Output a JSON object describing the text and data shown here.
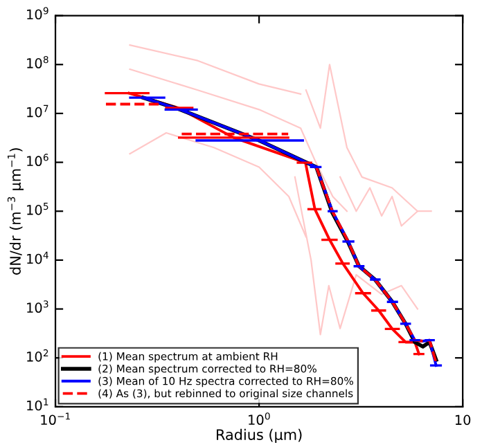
{
  "chart_data": {
    "type": "line",
    "xlabel": "Radius (μm)",
    "ylabel": "dN/dr (m$^{−3}$ μm$^{−1}$)",
    "log": "xy",
    "grid": false,
    "legend": "bottom left",
    "xlim": [
      0.1,
      10
    ],
    "ylim": [
      10,
      1000000000
    ],
    "xticks": [
      {
        "value": 0.1,
        "label": "10$^{−1}$"
      },
      {
        "value": 1,
        "label": "10$^{0}$"
      },
      10
    ],
    "yticks": [
      {
        "value": 10,
        "label": "10$^{1}$"
      },
      {
        "value": 100,
        "label": "10$^{2}$"
      },
      {
        "value": 1000,
        "label": "10$^{3}$"
      },
      {
        "value": 10000,
        "label": "10$^{4}$"
      },
      {
        "value": 100000,
        "label": "10$^{5}$"
      },
      {
        "value": 1000000,
        "label": "10$^{6}$"
      },
      {
        "value": 10000000,
        "label": "10$^{7}$"
      },
      {
        "value": 100000000,
        "label": "10$^{8}$"
      },
      {
        "value": 1000000000,
        "label": "10$^{9}$"
      }
    ],
    "series": [
      {
        "color": "#ffc8c8",
        "x": [
          0.232,
          0.5,
          1.0,
          1.6
        ],
        "values": [
          250000000,
          120000000,
          40000000,
          25000000
        ]
      },
      {
        "color": "#ffc8c8",
        "x": [
          0.232,
          0.5,
          1.0,
          1.6,
          1.9,
          2.3,
          2.7
        ],
        "values": [
          80000000,
          30000000,
          12000000,
          5000000,
          1000000,
          200000,
          100000
        ]
      },
      {
        "color": "#ffc8c8",
        "x": [
          0.232,
          0.35,
          0.6,
          1.0,
          1.4,
          1.7
        ],
        "values": [
          1500000,
          4000000,
          2000000,
          800000,
          200000,
          30000
        ]
      },
      {
        "color": "#ffc8c8",
        "x": [
          1.7,
          2.0,
          2.22,
          2.7,
          3.2,
          4.5,
          6.0
        ],
        "values": [
          30000000,
          5000000,
          100000000,
          2000000,
          500000,
          300000,
          100000
        ]
      },
      {
        "color": "#ffc8c8",
        "x": [
          1.5,
          1.8,
          2.0,
          2.2,
          2.5,
          3.0,
          4.0,
          5.0,
          6.0
        ],
        "values": [
          500000,
          10000,
          300,
          3000,
          400,
          5000,
          2000,
          3000,
          1000
        ]
      },
      {
        "color": "#ffc8c8",
        "x": [
          2.5,
          3.0,
          3.5,
          4.0,
          4.5,
          5.0,
          6.0,
          7.0
        ],
        "values": [
          500000,
          100000,
          300000,
          80000,
          200000,
          50000,
          100000,
          100000
        ]
      },
      {
        "name": "(1) Mean spectrum at ambient RH",
        "color": "#ff0000",
        "line_style": "solid",
        "x": [
          0.23,
          0.4,
          0.75,
          1.69,
          1.88,
          2.22,
          2.58,
          3.24,
          3.87,
          4.51,
          5.24,
          5.82,
          6.1
        ],
        "values": [
          26000000,
          13000000,
          3200000,
          980000,
          110000,
          26000,
          8500,
          2100,
          930,
          390,
          210,
          210,
          120
        ],
        "xerrors": [
          [
            0.177,
            0.286
          ],
          [
            0.35,
            0.47
          ],
          [
            0.405,
            1.39
          ],
          [
            1.55,
            1.8
          ],
          [
            1.75,
            2.0
          ],
          [
            2.05,
            2.4
          ],
          [
            2.4,
            2.75
          ],
          [
            3.0,
            3.5
          ],
          [
            3.6,
            4.15
          ],
          [
            4.2,
            4.85
          ],
          [
            4.9,
            5.6
          ],
          null,
          [
            5.8,
            6.4
          ]
        ]
      },
      {
        "name": "(2) Mean spectrum corrected to RH=80%",
        "color": "#000000",
        "line_style": "solid",
        "x": [
          0.27,
          0.41,
          1.0,
          1.91,
          2.29,
          2.74,
          3.09,
          3.71,
          4.51,
          5.24,
          5.82,
          6.37,
          6.87,
          7.4
        ],
        "values": [
          21000000,
          12000000,
          2800000,
          800000,
          93000,
          23000,
          7600,
          4000,
          1400,
          500,
          210,
          170,
          210,
          91
        ]
      },
      {
        "name": "(3) Mean of 10 Hz spectra corrected to RH=80%",
        "color": "#0000ff",
        "line_style": "solid",
        "x": [
          0.27,
          0.41,
          1.0,
          1.91,
          2.29,
          2.74,
          3.09,
          3.71,
          4.51,
          5.24,
          5.82,
          6.37,
          6.87,
          7.4
        ],
        "values": [
          21000000,
          12000000,
          2800000,
          800000,
          100000,
          24000,
          7500,
          4000,
          1400,
          500,
          230,
          220,
          230,
          70
        ],
        "xerrors": [
          [
            0.233,
            0.342
          ],
          [
            0.348,
            0.494
          ],
          [
            0.494,
            1.64
          ],
          [
            1.8,
            2.0
          ],
          [
            2.2,
            2.4
          ],
          [
            2.6,
            2.9
          ],
          [
            2.95,
            3.25
          ],
          [
            3.55,
            3.9
          ],
          [
            4.3,
            4.75
          ],
          [
            5.0,
            5.5
          ],
          [
            5.55,
            6.1
          ],
          null,
          [
            6.6,
            7.2
          ],
          [
            7.0,
            7.8
          ]
        ]
      },
      {
        "name": "(4) As (3), but rebinned to original size channels",
        "color": "#ff0000",
        "line_style": "dashed",
        "x": [
          0.177,
          0.323,
          0.37,
          0.417,
          1.39,
          1.6,
          1.91,
          2.29,
          2.74,
          3.09,
          3.71,
          4.51,
          5.24,
          5.82,
          6.37,
          6.87,
          7.4
        ],
        "values": [
          15500000,
          15500000,
          null,
          3800000,
          3800000,
          null,
          800000,
          100000,
          24000,
          7500,
          4000,
          1400,
          500,
          230,
          220,
          230,
          80
        ]
      }
    ]
  }
}
